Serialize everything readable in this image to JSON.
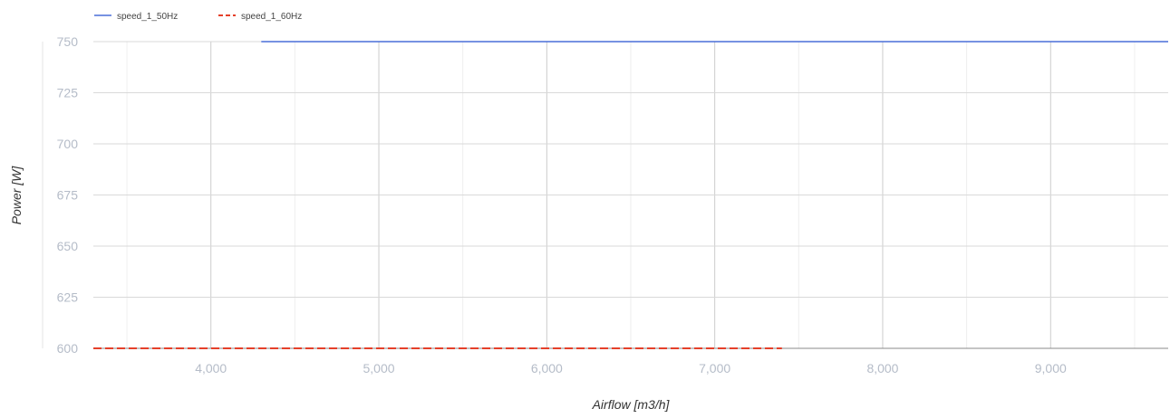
{
  "chart_data": {
    "type": "line",
    "title": "",
    "xlabel": "Airflow [m3/h]",
    "ylabel": "Power [W]",
    "xlim": [
      3300,
      9700
    ],
    "ylim": [
      600,
      750
    ],
    "x_ticks": [
      4000,
      5000,
      6000,
      7000,
      8000,
      9000
    ],
    "x_tick_labels": [
      "4,000",
      "5,000",
      "6,000",
      "7,000",
      "8,000",
      "9,000"
    ],
    "y_ticks": [
      600,
      625,
      650,
      675,
      700,
      725,
      750
    ],
    "y_tick_labels": [
      "600",
      "625",
      "650",
      "675",
      "700",
      "725",
      "750"
    ],
    "x_minor_grid": [
      3500,
      4500,
      5500,
      6500,
      7500,
      8500,
      9500
    ],
    "grid": true,
    "legend_position": "top-left",
    "series": [
      {
        "name": "speed_1_50Hz",
        "color": "#4a6fd8",
        "style": "solid",
        "x": [
          4300,
          9700
        ],
        "y": [
          750,
          750
        ]
      },
      {
        "name": "speed_1_60Hz",
        "color": "#e5402a",
        "style": "dashed",
        "x": [
          3300,
          7400
        ],
        "y": [
          600,
          600
        ]
      }
    ]
  }
}
